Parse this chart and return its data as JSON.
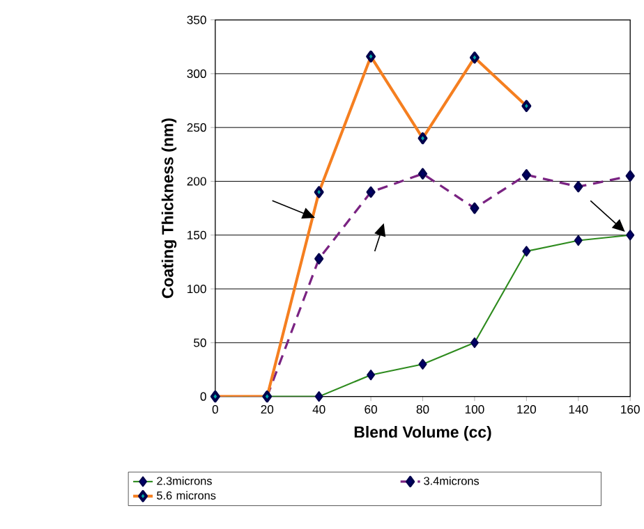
{
  "chart_data": {
    "type": "line",
    "xlabel": "Blend Volume (cc)",
    "ylabel": "Coating Thickness (nm)",
    "x": [
      0,
      20,
      40,
      60,
      80,
      100,
      120,
      140,
      160
    ],
    "series": [
      {
        "name": "2.3microns",
        "color": "#2e8b1e",
        "line_style": "solid",
        "values": [
          0,
          0,
          0,
          20,
          30,
          50,
          135,
          145,
          150
        ]
      },
      {
        "name": "3.4microns",
        "color": "#7a2382",
        "line_style": "dashed",
        "values": [
          0,
          0,
          128,
          190,
          207,
          175,
          206,
          195,
          205
        ]
      },
      {
        "name": "5.6 microns",
        "color": "#f57f20",
        "line_style": "solid",
        "values": [
          0,
          0,
          190,
          316,
          240,
          315,
          270,
          null,
          null
        ]
      }
    ],
    "xlim": [
      0,
      160
    ],
    "xticks": [
      0,
      20,
      40,
      60,
      80,
      100,
      120,
      140,
      160
    ],
    "ylim": [
      0,
      350
    ],
    "yticks": [
      0,
      50,
      100,
      150,
      200,
      250,
      300,
      350
    ],
    "grid": "y",
    "legend": "bottom",
    "marker": "diamond"
  }
}
